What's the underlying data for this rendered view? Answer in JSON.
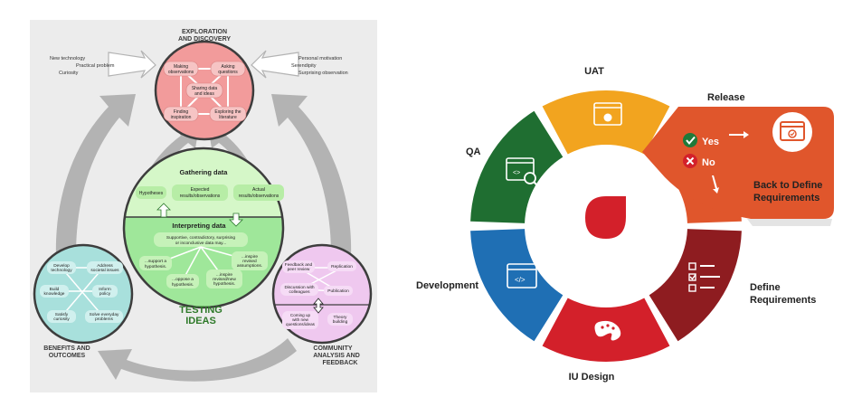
{
  "science": {
    "exploration": {
      "title_line1": "EXPLORATION",
      "title_line2": "AND DISCOVERY",
      "nodes": [
        {
          "l1": "Making",
          "l2": "observations"
        },
        {
          "l1": "Asking",
          "l2": "questions"
        },
        {
          "l1": "Sharing data",
          "l2": "and ideas"
        },
        {
          "l1": "Finding",
          "l2": "inspiration"
        },
        {
          "l1": "Exploring the",
          "l2": "literature"
        }
      ]
    },
    "inputs_left": [
      "New technology",
      "Practical problem",
      "Curiosity"
    ],
    "inputs_right": [
      "Personal motivation",
      "Serendipity",
      "Surprising observation"
    ],
    "gathering": {
      "title": "Gathering data",
      "boxes": [
        {
          "l1": "Hypotheses",
          "l2": "",
          "l3": ""
        },
        {
          "l1": "Expected",
          "l2": "results/observations",
          "l3": ""
        },
        {
          "l1": "Actual",
          "l2": "results/observations",
          "l3": ""
        }
      ]
    },
    "interpreting": {
      "title": "Interpreting data",
      "center_l1": "Supportive, contradictory, surprising",
      "center_l2": "or inconclusive data may...",
      "outcomes": [
        {
          "l1": "...support a",
          "l2": "hypothesis.",
          "l3": ""
        },
        {
          "l1": "...oppose a",
          "l2": "hypothesis.",
          "l3": ""
        },
        {
          "l1": "...inspire",
          "l2": "revised/new",
          "l3": "hypothesis."
        },
        {
          "l1": "...inspire",
          "l2": "revised",
          "l3": "assumptions."
        }
      ]
    },
    "testing_title_l1": "TESTING",
    "testing_title_l2": "IDEAS",
    "benefits": {
      "title_line1": "BENEFITS AND",
      "title_line2": "OUTCOMES",
      "nodes": [
        {
          "l1": "Develop",
          "l2": "technology"
        },
        {
          "l1": "Address",
          "l2": "societal issues"
        },
        {
          "l1": "Build",
          "l2": "knowledge"
        },
        {
          "l1": "Inform",
          "l2": "policy"
        },
        {
          "l1": "Satisfy",
          "l2": "curiosity"
        },
        {
          "l1": "Solve everyday",
          "l2": "problems"
        }
      ]
    },
    "community": {
      "title_line1": "COMMUNITY",
      "title_line2": "ANALYSIS AND",
      "title_line3": "FEEDBACK",
      "nodes": [
        {
          "l1": "Feedback and",
          "l2": "peer review",
          "l3": ""
        },
        {
          "l1": "Replication",
          "l2": "",
          "l3": ""
        },
        {
          "l1": "Discussion with",
          "l2": "colleagues",
          "l3": ""
        },
        {
          "l1": "Publication",
          "l2": "",
          "l3": ""
        },
        {
          "l1": "Coming up",
          "l2": "with new",
          "l3": "questions/ideas"
        },
        {
          "l1": "Theory",
          "l2": "building",
          "l3": ""
        }
      ]
    },
    "colors": {
      "exploration": "#f29b9b",
      "testing": "#9fe79a",
      "gathering": "#d5f7c8",
      "community": "#efc8ef",
      "benefits": "#a8e0dc",
      "arrows": "#b3b3b3"
    }
  },
  "cycle": {
    "segments": [
      {
        "label": "UAT",
        "color": "#f2a41f",
        "icon": "browser-bug-icon"
      },
      {
        "label": "Release",
        "color": "#e0562c",
        "icon": ""
      },
      {
        "label": "Define Requirements",
        "color": "#8e1c20",
        "icon": "checklist-icon"
      },
      {
        "label": "IU Design",
        "color": "#d3202a",
        "icon": "palette-icon"
      },
      {
        "label": "Development",
        "color": "#1f6fb4",
        "icon": "code-window-icon"
      },
      {
        "label": "QA",
        "color": "#1f6e31",
        "icon": "search-window-icon"
      }
    ],
    "release_panel": {
      "yes_label": "Yes",
      "no_label": "No",
      "back_line1": "Back to Define",
      "back_line2": "Requirements",
      "icon": "browser-window-icon"
    },
    "center": {
      "color": "#d3202a",
      "icon": "teardrop-icon"
    }
  }
}
